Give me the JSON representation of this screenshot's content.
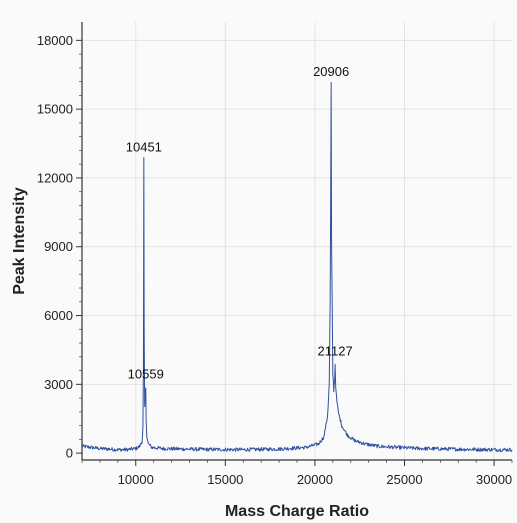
{
  "chart_data": {
    "type": "line",
    "title": "",
    "xlabel": "Mass Charge Ratio",
    "ylabel": "Peak Intensity",
    "xlim": [
      7000,
      31000
    ],
    "ylim": [
      -300,
      18800
    ],
    "x_ticks": [
      10000,
      15000,
      20000,
      25000,
      30000
    ],
    "y_ticks": [
      0,
      3000,
      6000,
      9000,
      12000,
      15000,
      18000
    ],
    "grid": true,
    "series": [
      {
        "color": "#2f4fa0",
        "x": [
          7000,
          7500,
          8000,
          8500,
          9000,
          9500,
          10000,
          10200,
          10350,
          10400,
          10430,
          10451,
          10470,
          10500,
          10540,
          10559,
          10580,
          10620,
          10700,
          10900,
          11500,
          12500,
          14000,
          16000,
          18000,
          19500,
          20200,
          20500,
          20700,
          20800,
          20850,
          20880,
          20906,
          20930,
          20960,
          21000,
          21050,
          21100,
          21127,
          21160,
          21200,
          21300,
          21500,
          21800,
          22200,
          22800,
          23500,
          24500,
          26000,
          28000,
          30000,
          31000
        ],
        "y": [
          300,
          250,
          200,
          180,
          150,
          150,
          200,
          280,
          500,
          1100,
          4000,
          12800,
          5000,
          2000,
          2600,
          2900,
          1500,
          700,
          400,
          250,
          200,
          180,
          160,
          150,
          180,
          250,
          400,
          700,
          1600,
          3000,
          6500,
          11000,
          16100,
          9000,
          6800,
          3500,
          2800,
          3200,
          3900,
          3000,
          2400,
          1800,
          1200,
          800,
          550,
          400,
          300,
          250,
          200,
          170,
          150,
          150
        ]
      }
    ],
    "annotations": [
      {
        "text": "10451",
        "x": 10451,
        "y": 12800
      },
      {
        "text": "10559",
        "x": 10559,
        "y": 2900
      },
      {
        "text": "20906",
        "x": 20906,
        "y": 16100
      },
      {
        "text": "21127",
        "x": 21127,
        "y": 3900
      }
    ],
    "legend": "none"
  }
}
